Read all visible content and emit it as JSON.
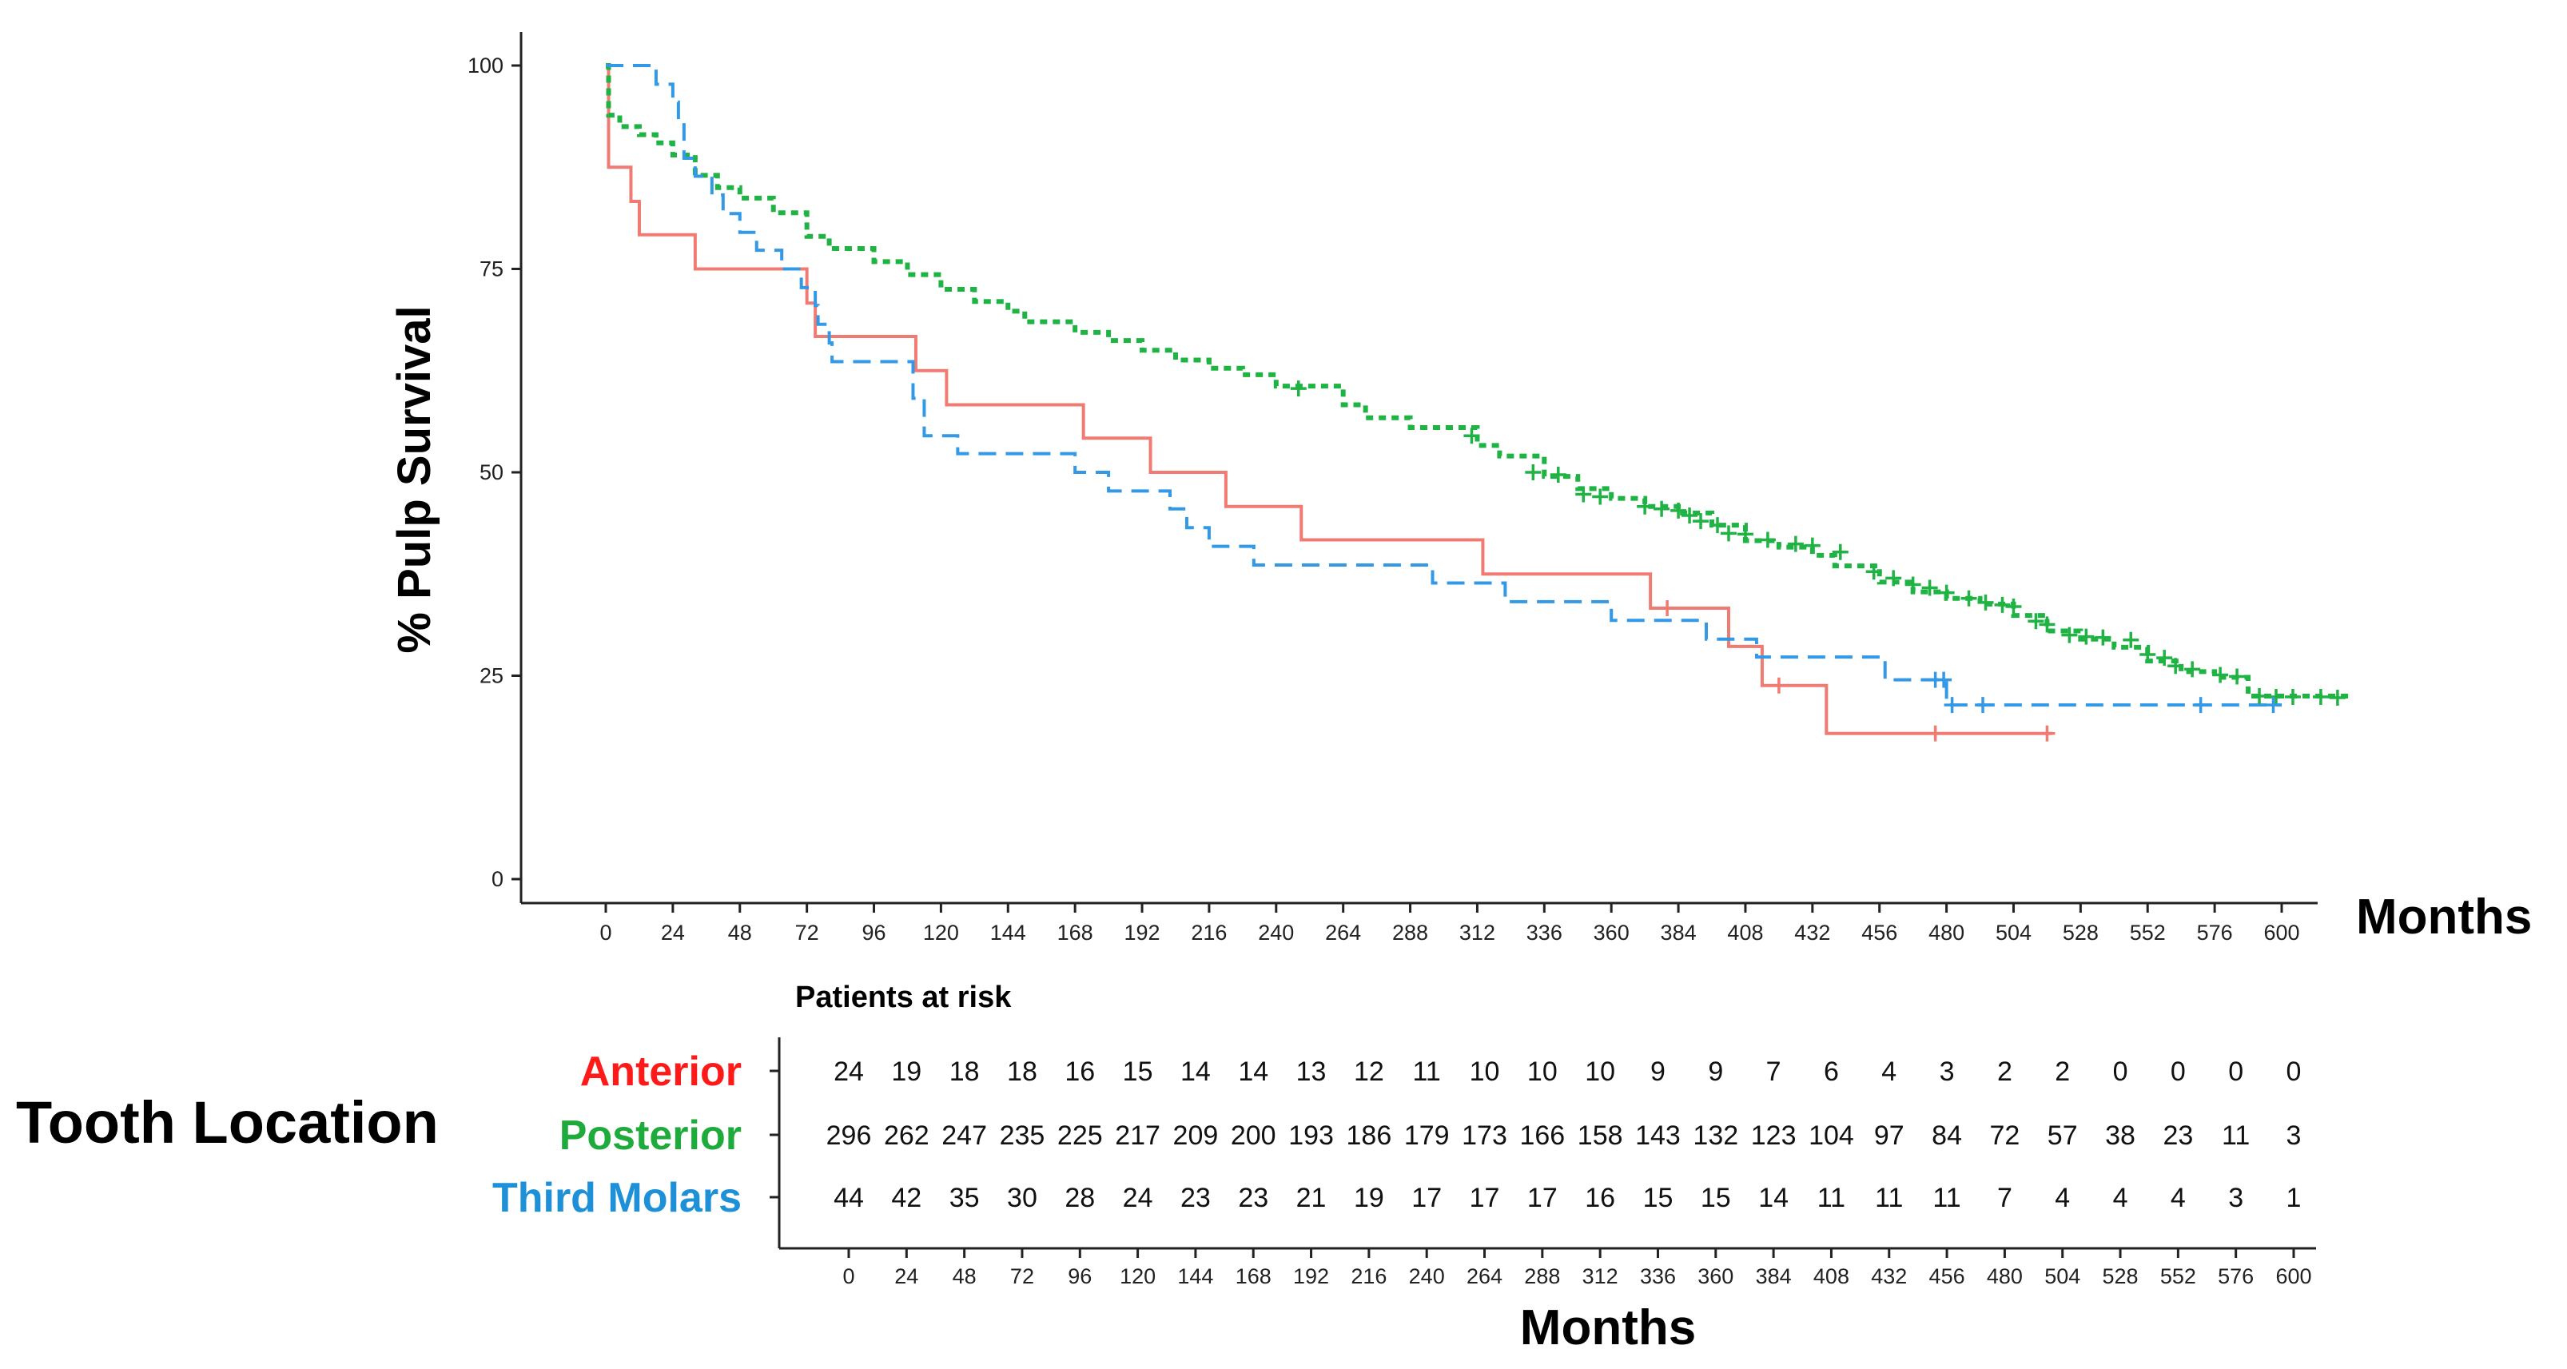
{
  "chart_data": {
    "type": "line",
    "subtype": "kaplan-meier",
    "title": "",
    "ylabel": "% Pulp Survival",
    "xlabel": "Months",
    "ylim": [
      0,
      100
    ],
    "xlim": [
      -24,
      624
    ],
    "y_ticks": [
      0,
      25,
      50,
      75,
      100
    ],
    "x_ticks": [
      0,
      24,
      48,
      72,
      96,
      120,
      144,
      168,
      192,
      216,
      240,
      264,
      288,
      312,
      336,
      360,
      384,
      408,
      432,
      456,
      480,
      504,
      528,
      552,
      576,
      600
    ],
    "grid": false,
    "legend": "none",
    "series": [
      {
        "name": "Anterior",
        "color": "#f07b72",
        "dash": "solid",
        "steps": [
          [
            0,
            100
          ],
          [
            1,
            87.5
          ],
          [
            9,
            83.3
          ],
          [
            12,
            79.2
          ],
          [
            32,
            75
          ],
          [
            72,
            70.8
          ],
          [
            75,
            66.7
          ],
          [
            111,
            62.5
          ],
          [
            122,
            58.3
          ],
          [
            171,
            54.2
          ],
          [
            195,
            50
          ],
          [
            222,
            45.8
          ],
          [
            249,
            41.7
          ],
          [
            314,
            37.5
          ],
          [
            374,
            33.3
          ],
          [
            402,
            28.6
          ],
          [
            414,
            23.8
          ],
          [
            437,
            17.9
          ],
          [
            518,
            17.9
          ]
        ],
        "censored": [
          [
            380,
            33.3
          ],
          [
            420,
            23.8
          ],
          [
            476,
            17.9
          ],
          [
            516,
            17.9
          ]
        ]
      },
      {
        "name": "Posterior",
        "color": "#1fb344",
        "dash": "dotted",
        "steps": [
          [
            0,
            100
          ],
          [
            1,
            93.9
          ],
          [
            5,
            92.5
          ],
          [
            12,
            91.5
          ],
          [
            18,
            90.5
          ],
          [
            24,
            89
          ],
          [
            32,
            86.5
          ],
          [
            40,
            85
          ],
          [
            48,
            83.7
          ],
          [
            60,
            81.9
          ],
          [
            72,
            79
          ],
          [
            80,
            77.5
          ],
          [
            96,
            75.9
          ],
          [
            108,
            74.3
          ],
          [
            120,
            72.5
          ],
          [
            132,
            71
          ],
          [
            144,
            69.8
          ],
          [
            150,
            68.5
          ],
          [
            168,
            67.2
          ],
          [
            180,
            66.2
          ],
          [
            192,
            65
          ],
          [
            204,
            63.8
          ],
          [
            216,
            62.8
          ],
          [
            228,
            62
          ],
          [
            240,
            60.6
          ],
          [
            264,
            58.3
          ],
          [
            272,
            56.7
          ],
          [
            288,
            55.5
          ],
          [
            312,
            53.3
          ],
          [
            320,
            52
          ],
          [
            336,
            49.5
          ],
          [
            348,
            48
          ],
          [
            360,
            46.8
          ],
          [
            372,
            45.8
          ],
          [
            384,
            45
          ],
          [
            396,
            43.5
          ],
          [
            408,
            41.6
          ],
          [
            420,
            40.8
          ],
          [
            432,
            39.8
          ],
          [
            440,
            38.5
          ],
          [
            456,
            36.5
          ],
          [
            468,
            35.3
          ],
          [
            480,
            34.5
          ],
          [
            492,
            33.8
          ],
          [
            504,
            32.4
          ],
          [
            516,
            30.5
          ],
          [
            528,
            29.5
          ],
          [
            540,
            28.5
          ],
          [
            552,
            26.8
          ],
          [
            564,
            25.5
          ],
          [
            576,
            24.8
          ],
          [
            588,
            22.5
          ],
          [
            624,
            22.3
          ]
        ],
        "censored": [
          [
            248,
            60.3
          ],
          [
            310,
            54.5
          ],
          [
            332,
            50
          ],
          [
            341,
            49.7
          ],
          [
            350,
            47.3
          ],
          [
            356,
            47
          ],
          [
            372,
            45.8
          ],
          [
            378,
            45.5
          ],
          [
            384,
            45.3
          ],
          [
            388,
            44.7
          ],
          [
            392,
            44
          ],
          [
            398,
            43.5
          ],
          [
            402,
            42.5
          ],
          [
            408,
            42.4
          ],
          [
            416,
            41.7
          ],
          [
            426,
            41.2
          ],
          [
            432,
            41
          ],
          [
            442,
            40.2
          ],
          [
            454,
            37.8
          ],
          [
            461,
            37
          ],
          [
            468,
            36.2
          ],
          [
            474,
            35.8
          ],
          [
            480,
            35.2
          ],
          [
            488,
            34.5
          ],
          [
            494,
            34
          ],
          [
            500,
            33.7
          ],
          [
            504,
            33.5
          ],
          [
            512,
            31.7
          ],
          [
            516,
            31.3
          ],
          [
            524,
            30
          ],
          [
            530,
            29.8
          ],
          [
            536,
            29.7
          ],
          [
            546,
            29.4
          ],
          [
            552,
            27.6
          ],
          [
            558,
            27.2
          ],
          [
            562,
            26.2
          ],
          [
            568,
            25.8
          ],
          [
            578,
            25.1
          ],
          [
            584,
            24.9
          ],
          [
            592,
            22.5
          ],
          [
            598,
            22.4
          ],
          [
            604,
            22.4
          ],
          [
            614,
            22.4
          ],
          [
            620,
            22.3
          ]
        ]
      },
      {
        "name": "Third Molars",
        "color": "#3399e6",
        "dash": "dashed",
        "steps": [
          [
            0,
            100
          ],
          [
            18,
            97.7
          ],
          [
            24,
            95.5
          ],
          [
            26,
            93.2
          ],
          [
            28,
            88.6
          ],
          [
            32,
            86.4
          ],
          [
            38,
            84.1
          ],
          [
            42,
            81.8
          ],
          [
            48,
            79.5
          ],
          [
            54,
            77.3
          ],
          [
            63,
            75
          ],
          [
            70,
            72.7
          ],
          [
            75,
            70.5
          ],
          [
            76,
            68.2
          ],
          [
            80,
            65.9
          ],
          [
            81,
            63.6
          ],
          [
            110,
            59.1
          ],
          [
            114,
            54.5
          ],
          [
            126,
            52.3
          ],
          [
            168,
            50
          ],
          [
            180,
            47.7
          ],
          [
            202,
            45.5
          ],
          [
            208,
            43.2
          ],
          [
            216,
            40.9
          ],
          [
            232,
            38.6
          ],
          [
            296,
            36.4
          ],
          [
            322,
            34.1
          ],
          [
            360,
            31.8
          ],
          [
            394,
            29.5
          ],
          [
            412,
            27.3
          ],
          [
            458,
            24.5
          ],
          [
            480,
            21.4
          ],
          [
            600,
            21.4
          ]
        ],
        "censored": [
          [
            476,
            24.5
          ],
          [
            479,
            24.5
          ],
          [
            482,
            21.4
          ],
          [
            493,
            21.4
          ],
          [
            571,
            21.4
          ],
          [
            597,
            21.4
          ]
        ]
      }
    ],
    "risk_table": {
      "title": "Patients at risk",
      "group_title": "Tooth Location",
      "xlabel": "Months",
      "time_points": [
        0,
        24,
        48,
        72,
        96,
        120,
        144,
        168,
        192,
        216,
        240,
        264,
        288,
        312,
        336,
        360,
        384,
        408,
        432,
        456,
        480,
        504,
        528,
        552,
        576,
        600
      ],
      "rows": [
        {
          "name": "Anterior",
          "color": "#ff1a1a",
          "values": [
            24,
            19,
            18,
            18,
            16,
            15,
            14,
            14,
            13,
            12,
            11,
            10,
            10,
            10,
            9,
            9,
            7,
            6,
            4,
            3,
            2,
            2,
            0,
            0,
            0,
            0
          ]
        },
        {
          "name": "Posterior",
          "color": "#1faa3c",
          "values": [
            296,
            262,
            247,
            235,
            225,
            217,
            209,
            200,
            193,
            186,
            179,
            173,
            166,
            158,
            143,
            132,
            123,
            104,
            97,
            84,
            72,
            57,
            38,
            23,
            11,
            3
          ]
        },
        {
          "name": "Third Molars",
          "color": "#1e90d8",
          "values": [
            44,
            42,
            35,
            30,
            28,
            24,
            23,
            23,
            21,
            19,
            17,
            17,
            17,
            16,
            15,
            15,
            14,
            11,
            11,
            11,
            7,
            4,
            4,
            4,
            3,
            1
          ]
        }
      ]
    }
  }
}
